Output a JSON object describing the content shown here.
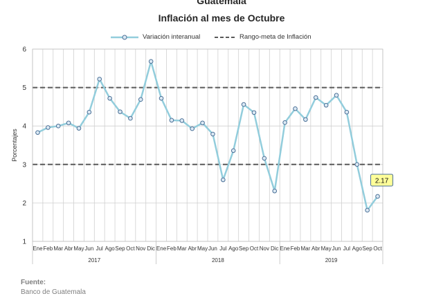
{
  "header": {
    "title": "Guatemala",
    "subtitle": "Inflación al mes de Octubre"
  },
  "source": {
    "label": "Fuente:",
    "value": "Banco de Guatemala"
  },
  "colors": {
    "series_line": "#92cddc",
    "marker_stroke": "#4a6f96",
    "marker_fill": "#dbe9f4",
    "target_line": "#595959",
    "grid": "#d0d0d0",
    "callout_fill": "#ffff99",
    "callout_stroke": "#4a6f96"
  },
  "chart_data": {
    "type": "line",
    "title": "",
    "ylabel": "Porcentajes",
    "xlabel": "",
    "ylim": [
      1,
      6
    ],
    "yticks": [
      1,
      2,
      3,
      4,
      5,
      6
    ],
    "grid": "on",
    "legend_position": "top",
    "categories": [
      "Ene",
      "Feb",
      "Mar",
      "Abr",
      "May",
      "Jun",
      "Jul",
      "Ago",
      "Sep",
      "Oct",
      "Nov",
      "Dic",
      "Ene",
      "Feb",
      "Mar",
      "Abr",
      "May",
      "Jun",
      "Jul",
      "Ago",
      "Sep",
      "Oct",
      "Nov",
      "Dic",
      "Ene",
      "Feb",
      "Mar",
      "Abr",
      "May",
      "Jun",
      "Jul",
      "Ago",
      "Sep",
      "Oct"
    ],
    "years": [
      {
        "label": "2017",
        "start": 0,
        "end": 11
      },
      {
        "label": "2018",
        "start": 12,
        "end": 23
      },
      {
        "label": "2019",
        "start": 24,
        "end": 33
      }
    ],
    "series": [
      {
        "name": "Variación interanual",
        "style": "line-with-markers",
        "values": [
          3.83,
          3.96,
          4.0,
          4.08,
          3.94,
          4.36,
          5.22,
          4.72,
          4.37,
          4.2,
          4.69,
          5.68,
          4.72,
          4.15,
          4.14,
          3.93,
          4.08,
          3.79,
          2.6,
          3.36,
          4.56,
          4.35,
          3.16,
          2.31,
          4.09,
          4.45,
          4.17,
          4.74,
          4.54,
          4.8,
          4.36,
          3.0,
          1.81,
          2.17
        ]
      },
      {
        "name": "Rango-meta de Inflación",
        "style": "dashed",
        "lines": [
          3,
          5
        ]
      }
    ],
    "annotations": [
      {
        "text": "2.17",
        "index": 33
      }
    ]
  }
}
